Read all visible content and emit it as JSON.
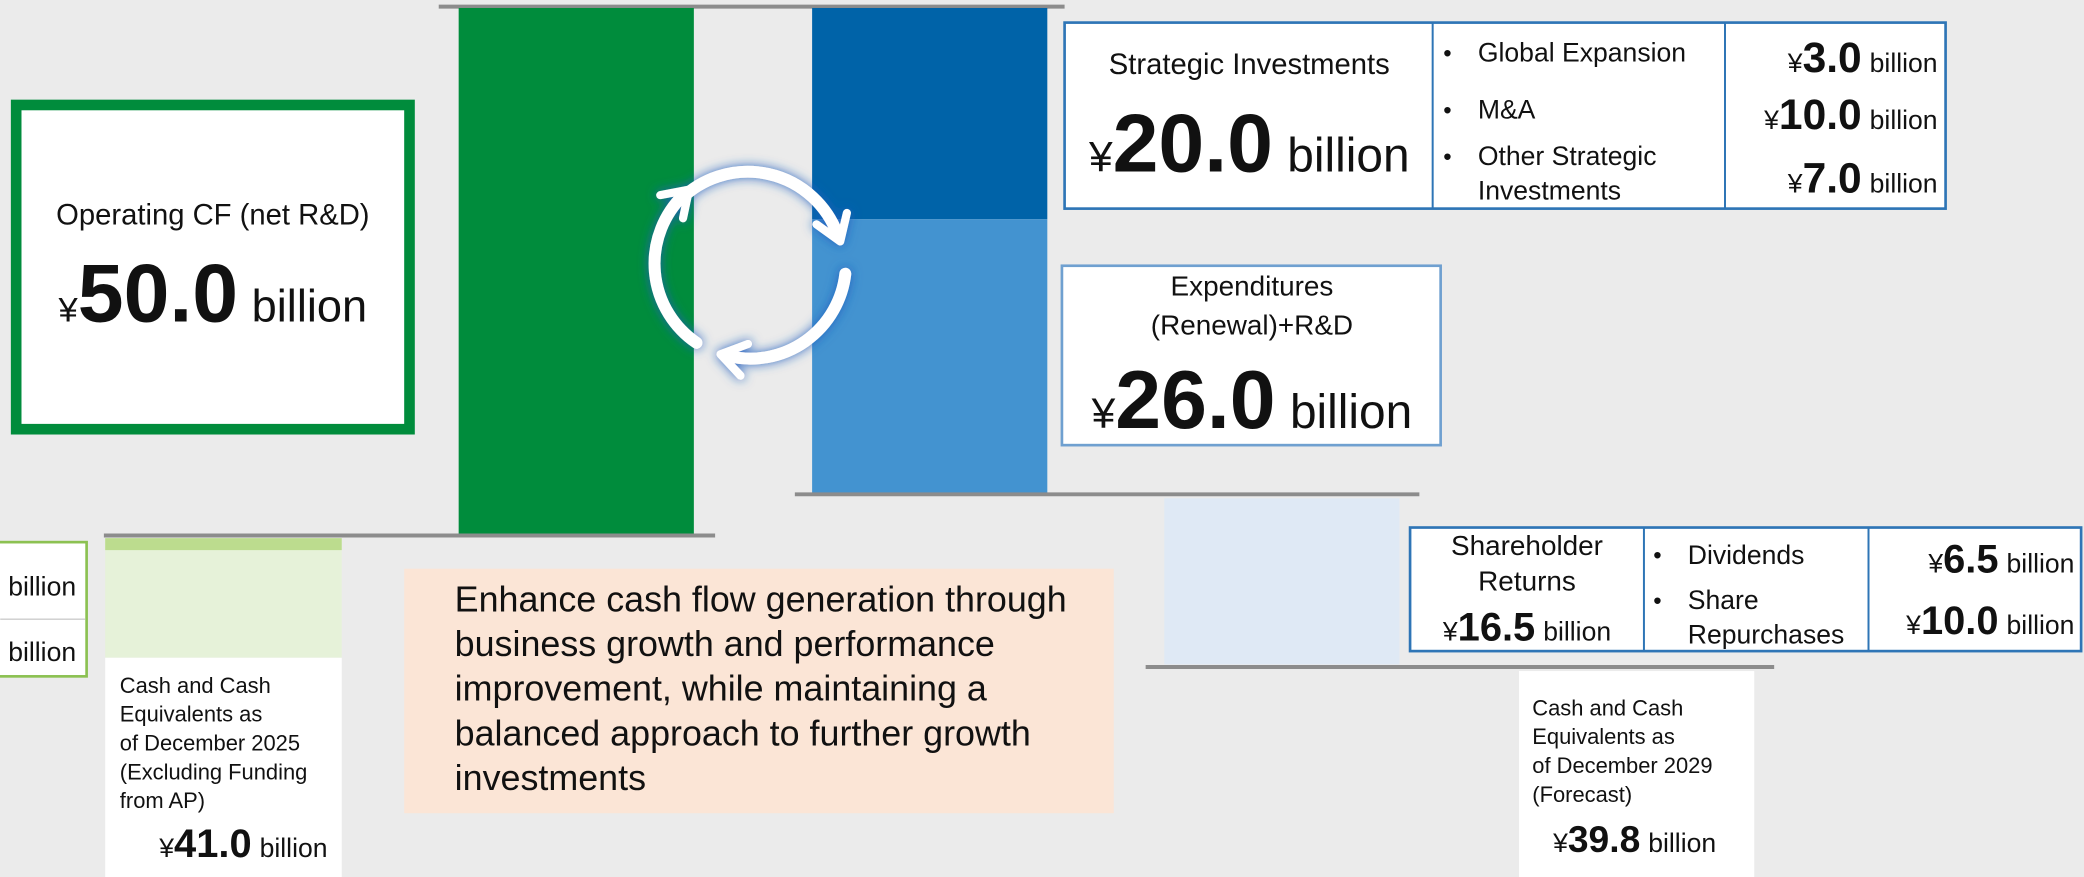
{
  "operating_cf": {
    "label": "Operating CF (net R&D)",
    "currency": "¥",
    "amount": "50.0",
    "unit": "billion"
  },
  "strategic_investments": {
    "label": "Strategic Investments",
    "currency": "¥",
    "amount": "20.0",
    "unit": "billion",
    "items": [
      {
        "lines": [
          "Global Expansion"
        ],
        "currency": "¥",
        "amount": "3.0",
        "unit": "billion"
      },
      {
        "lines": [
          "M&A"
        ],
        "currency": "¥",
        "amount": "10.0",
        "unit": "billion"
      },
      {
        "lines": [
          "Other Strategic",
          "Investments"
        ],
        "currency": "¥",
        "amount": "7.0",
        "unit": "billion"
      }
    ]
  },
  "expenditures": {
    "lines": [
      "Expenditures",
      "(Renewal)+R&D"
    ],
    "currency": "¥",
    "amount": "26.0",
    "unit": "billion"
  },
  "shareholder_returns": {
    "lines": [
      "Shareholder",
      "Returns"
    ],
    "currency": "¥",
    "amount": "16.5",
    "unit": "billion",
    "items": [
      {
        "lines": [
          "Dividends"
        ],
        "currency": "¥",
        "amount": "6.5",
        "unit": "billion"
      },
      {
        "lines": [
          "Share",
          "Repurchases"
        ],
        "currency": "¥",
        "amount": "10.0",
        "unit": "billion"
      }
    ]
  },
  "cash_2025": {
    "lines": [
      "Cash and Cash",
      "Equivalents as",
      "of December 2025",
      "(Excluding Funding",
      "from AP)"
    ],
    "currency": "¥",
    "amount": "41.0",
    "unit": "billion"
  },
  "cash_2029": {
    "lines": [
      "Cash and Cash",
      "Equivalents as",
      "of December 2029",
      "(Forecast)"
    ],
    "currency": "¥",
    "amount": "39.8",
    "unit": "billion"
  },
  "left_partial": {
    "units": [
      "billion",
      "billion"
    ]
  },
  "message": {
    "lines": [
      "Enhance cash flow generation through",
      "business growth and performance",
      "improvement, while maintaining a",
      "balanced approach to further growth",
      "investments"
    ]
  }
}
